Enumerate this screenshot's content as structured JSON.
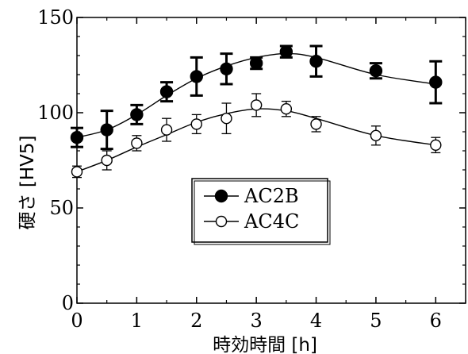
{
  "chart_data": {
    "type": "line",
    "title": "",
    "xlabel": "時効時間 [h]",
    "ylabel": "硬さ [HV5]",
    "xlim": [
      0,
      6.5
    ],
    "ylim": [
      0,
      150
    ],
    "x_ticks": [
      "0",
      "1",
      "2",
      "3",
      "4",
      "5",
      "6"
    ],
    "y_ticks": [
      "0",
      "50",
      "100",
      "150"
    ],
    "grid": false,
    "legend_position": "center",
    "series": [
      {
        "name": "AC2B",
        "marker": "filled-circle",
        "color": "#000000",
        "x": [
          0,
          0.5,
          1,
          1.5,
          2,
          2.5,
          3,
          3.5,
          4,
          5,
          6
        ],
        "y": [
          87,
          91,
          99,
          111,
          119,
          123,
          126,
          132,
          127,
          122,
          116
        ],
        "err": [
          5,
          10,
          5,
          5,
          10,
          8,
          3,
          3,
          8,
          4,
          11
        ],
        "fit_y": [
          87,
          91,
          99,
          109,
          118,
          124.5,
          129,
          131,
          129,
          120,
          115
        ]
      },
      {
        "name": "AC4C",
        "marker": "open-circle",
        "color": "#000000",
        "x": [
          0,
          0.5,
          1,
          1.5,
          2,
          2.5,
          3,
          3.5,
          4,
          5,
          6
        ],
        "y": [
          69,
          75,
          84,
          91,
          94,
          97,
          104,
          102,
          94,
          88,
          83
        ],
        "err": [
          3,
          5,
          4,
          6,
          5,
          8,
          6,
          4,
          4,
          5,
          4
        ],
        "fit_y": [
          69,
          75,
          82,
          88.5,
          95,
          99.5,
          102,
          101,
          97,
          88,
          83
        ]
      }
    ]
  }
}
